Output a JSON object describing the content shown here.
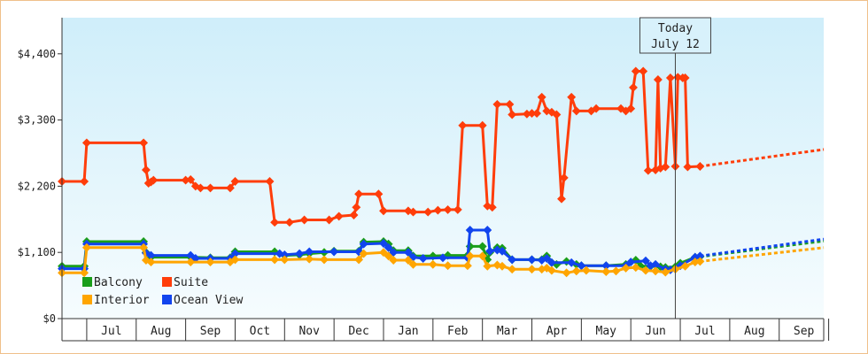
{
  "chart_data": {
    "type": "line",
    "title": "",
    "xlabel": "",
    "ylabel": "",
    "ylim": [
      0,
      5000
    ],
    "y_ticks": [
      {
        "value": 0,
        "label": "$0"
      },
      {
        "value": 1100,
        "label": "$1,100"
      },
      {
        "value": 2200,
        "label": "$2,200"
      },
      {
        "value": 3300,
        "label": "$3,300"
      },
      {
        "value": 4400,
        "label": "$4,400"
      }
    ],
    "x_unit": "months since start of June",
    "xlim": [
      0,
      15.4
    ],
    "month_ticks": [
      {
        "label": "Jul",
        "x": 1
      },
      {
        "label": "Aug",
        "x": 2
      },
      {
        "label": "Sep",
        "x": 3
      },
      {
        "label": "Oct",
        "x": 4
      },
      {
        "label": "Nov",
        "x": 5
      },
      {
        "label": "Dec",
        "x": 6
      },
      {
        "label": "Jan",
        "x": 7
      },
      {
        "label": "Feb",
        "x": 8
      },
      {
        "label": "Mar",
        "x": 9
      },
      {
        "label": "Apr",
        "x": 10
      },
      {
        "label": "May",
        "x": 11
      },
      {
        "label": "Jun",
        "x": 12
      },
      {
        "label": "Jul",
        "x": 13
      },
      {
        "label": "Aug",
        "x": 14
      },
      {
        "label": "Sep",
        "x": 15
      }
    ],
    "today": {
      "line1": "Today",
      "line2": "July 12",
      "x": 12.4
    },
    "grid": false,
    "background_gradient": [
      "#cfeefa",
      "#f6fcfe"
    ],
    "legend": {
      "placement": "bottom-left",
      "entries": [
        {
          "name": "Balcony",
          "color": "#1a9e1a"
        },
        {
          "name": "Suite",
          "color": "#ff3d0a"
        },
        {
          "name": "Interior",
          "color": "#ffa500"
        },
        {
          "name": "Ocean View",
          "color": "#1144ee"
        }
      ]
    },
    "series": [
      {
        "name": "Suite",
        "color": "#ff3d0a",
        "points": [
          [
            0,
            2280
          ],
          [
            0.45,
            2280
          ],
          [
            0.5,
            2920
          ],
          [
            1.65,
            2920
          ],
          [
            1.7,
            2470
          ],
          [
            1.75,
            2250
          ],
          [
            1.8,
            2270
          ],
          [
            1.85,
            2300
          ],
          [
            2.5,
            2300
          ],
          [
            2.6,
            2310
          ],
          [
            2.7,
            2200
          ],
          [
            2.8,
            2170
          ],
          [
            3.0,
            2170
          ],
          [
            3.4,
            2170
          ],
          [
            3.5,
            2280
          ],
          [
            4.2,
            2280
          ],
          [
            4.3,
            1600
          ],
          [
            4.6,
            1600
          ],
          [
            4.9,
            1640
          ],
          [
            5.4,
            1640
          ],
          [
            5.6,
            1700
          ],
          [
            5.9,
            1720
          ],
          [
            5.95,
            1850
          ],
          [
            6.0,
            2070
          ],
          [
            6.4,
            2070
          ],
          [
            6.5,
            1790
          ],
          [
            7.0,
            1790
          ],
          [
            7.1,
            1770
          ],
          [
            7.4,
            1770
          ],
          [
            7.6,
            1800
          ],
          [
            7.8,
            1810
          ],
          [
            8.0,
            1810
          ],
          [
            8.1,
            3210
          ],
          [
            8.5,
            3210
          ],
          [
            8.6,
            1870
          ],
          [
            8.7,
            1850
          ],
          [
            8.8,
            3560
          ],
          [
            9.05,
            3560
          ],
          [
            9.1,
            3390
          ],
          [
            9.4,
            3400
          ],
          [
            9.5,
            3410
          ],
          [
            9.6,
            3410
          ],
          [
            9.7,
            3680
          ],
          [
            9.8,
            3450
          ],
          [
            9.9,
            3430
          ],
          [
            10.0,
            3390
          ],
          [
            10.1,
            1990
          ],
          [
            10.15,
            2340
          ],
          [
            10.3,
            3680
          ],
          [
            10.4,
            3450
          ],
          [
            10.7,
            3450
          ],
          [
            10.8,
            3490
          ],
          [
            11.3,
            3490
          ],
          [
            11.4,
            3450
          ],
          [
            11.5,
            3490
          ],
          [
            11.55,
            3840
          ],
          [
            11.6,
            4110
          ],
          [
            11.75,
            4110
          ],
          [
            11.85,
            2460
          ],
          [
            12.0,
            2470
          ],
          [
            12.05,
            3970
          ],
          [
            12.1,
            2500
          ],
          [
            12.2,
            2520
          ],
          [
            12.3,
            4000
          ],
          [
            12.4,
            2530
          ],
          [
            12.45,
            4010
          ],
          [
            12.55,
            4000
          ],
          [
            12.6,
            4000
          ],
          [
            12.65,
            2520
          ],
          [
            12.9,
            2530
          ]
        ],
        "projection": [
          [
            12.9,
            2530
          ],
          [
            15.4,
            2810
          ]
        ]
      },
      {
        "name": "Balcony",
        "color": "#1a9e1a",
        "points": [
          [
            0,
            870
          ],
          [
            0.45,
            870
          ],
          [
            0.5,
            1280
          ],
          [
            1.65,
            1280
          ],
          [
            1.7,
            1100
          ],
          [
            1.8,
            1020
          ],
          [
            2.6,
            1020
          ],
          [
            3.0,
            1010
          ],
          [
            3.4,
            1010
          ],
          [
            3.5,
            1110
          ],
          [
            4.3,
            1110
          ],
          [
            4.5,
            1050
          ],
          [
            4.8,
            1060
          ],
          [
            5.0,
            1080
          ],
          [
            5.3,
            1100
          ],
          [
            5.5,
            1120
          ],
          [
            6.0,
            1120
          ],
          [
            6.1,
            1270
          ],
          [
            6.5,
            1280
          ],
          [
            6.6,
            1240
          ],
          [
            6.7,
            1130
          ],
          [
            7.0,
            1130
          ],
          [
            7.1,
            1040
          ],
          [
            7.5,
            1040
          ],
          [
            7.8,
            1050
          ],
          [
            8.2,
            1050
          ],
          [
            8.25,
            1200
          ],
          [
            8.5,
            1200
          ],
          [
            8.6,
            980
          ],
          [
            8.65,
            1100
          ],
          [
            8.8,
            1180
          ],
          [
            8.9,
            1170
          ],
          [
            9.1,
            980
          ],
          [
            9.5,
            980
          ],
          [
            9.7,
            980
          ],
          [
            9.8,
            1040
          ],
          [
            9.9,
            930
          ],
          [
            10.0,
            900
          ],
          [
            10.2,
            950
          ],
          [
            10.4,
            900
          ],
          [
            10.5,
            880
          ],
          [
            11.0,
            880
          ],
          [
            11.4,
            900
          ],
          [
            11.6,
            970
          ],
          [
            11.7,
            870
          ],
          [
            11.9,
            870
          ],
          [
            12.1,
            860
          ],
          [
            12.2,
            850
          ],
          [
            12.4,
            860
          ],
          [
            12.5,
            920
          ],
          [
            12.8,
            1020
          ],
          [
            12.9,
            1030
          ]
        ],
        "projection": [
          [
            12.9,
            1030
          ],
          [
            15.4,
            1290
          ]
        ]
      },
      {
        "name": "Ocean View",
        "color": "#1144ee",
        "points": [
          [
            0,
            830
          ],
          [
            0.45,
            830
          ],
          [
            0.5,
            1240
          ],
          [
            1.65,
            1240
          ],
          [
            1.7,
            1090
          ],
          [
            1.8,
            1050
          ],
          [
            2.6,
            1050
          ],
          [
            2.7,
            1000
          ],
          [
            3.0,
            1000
          ],
          [
            3.4,
            1000
          ],
          [
            3.5,
            1080
          ],
          [
            4.4,
            1080
          ],
          [
            4.5,
            1060
          ],
          [
            4.8,
            1080
          ],
          [
            5.0,
            1110
          ],
          [
            5.5,
            1110
          ],
          [
            6.0,
            1110
          ],
          [
            6.1,
            1240
          ],
          [
            6.5,
            1250
          ],
          [
            6.6,
            1180
          ],
          [
            6.7,
            1100
          ],
          [
            7.0,
            1100
          ],
          [
            7.1,
            1020
          ],
          [
            7.3,
            1000
          ],
          [
            7.7,
            1010
          ],
          [
            8.2,
            1010
          ],
          [
            8.25,
            1470
          ],
          [
            8.6,
            1470
          ],
          [
            8.65,
            1120
          ],
          [
            8.8,
            1140
          ],
          [
            8.9,
            1120
          ],
          [
            9.1,
            980
          ],
          [
            9.5,
            980
          ],
          [
            9.7,
            970
          ],
          [
            9.8,
            1000
          ],
          [
            9.9,
            930
          ],
          [
            10.3,
            930
          ],
          [
            10.5,
            880
          ],
          [
            11.0,
            880
          ],
          [
            11.4,
            880
          ],
          [
            11.5,
            940
          ],
          [
            11.8,
            960
          ],
          [
            11.9,
            880
          ],
          [
            12.0,
            900
          ],
          [
            12.2,
            820
          ],
          [
            12.3,
            810
          ],
          [
            12.5,
            880
          ],
          [
            12.8,
            1020
          ],
          [
            12.9,
            1040
          ]
        ],
        "projection": [
          [
            12.9,
            1040
          ],
          [
            15.4,
            1320
          ]
        ]
      },
      {
        "name": "Interior",
        "color": "#ffa500",
        "points": [
          [
            0,
            760
          ],
          [
            0.45,
            760
          ],
          [
            0.5,
            1180
          ],
          [
            1.65,
            1180
          ],
          [
            1.7,
            970
          ],
          [
            1.8,
            940
          ],
          [
            2.6,
            940
          ],
          [
            3.0,
            940
          ],
          [
            3.4,
            940
          ],
          [
            3.5,
            980
          ],
          [
            4.3,
            980
          ],
          [
            4.5,
            980
          ],
          [
            5.0,
            990
          ],
          [
            5.3,
            980
          ],
          [
            6.0,
            980
          ],
          [
            6.1,
            1080
          ],
          [
            6.5,
            1100
          ],
          [
            6.6,
            1040
          ],
          [
            6.7,
            970
          ],
          [
            7.0,
            970
          ],
          [
            7.1,
            900
          ],
          [
            7.5,
            900
          ],
          [
            7.8,
            880
          ],
          [
            8.2,
            880
          ],
          [
            8.25,
            1040
          ],
          [
            8.5,
            1040
          ],
          [
            8.6,
            870
          ],
          [
            8.8,
            890
          ],
          [
            8.9,
            870
          ],
          [
            9.1,
            820
          ],
          [
            9.5,
            820
          ],
          [
            9.7,
            820
          ],
          [
            9.8,
            840
          ],
          [
            9.9,
            800
          ],
          [
            10.2,
            760
          ],
          [
            10.4,
            790
          ],
          [
            10.6,
            800
          ],
          [
            11.0,
            780
          ],
          [
            11.2,
            790
          ],
          [
            11.4,
            840
          ],
          [
            11.6,
            850
          ],
          [
            11.8,
            800
          ],
          [
            12.0,
            790
          ],
          [
            12.2,
            770
          ],
          [
            12.4,
            820
          ],
          [
            12.6,
            870
          ],
          [
            12.8,
            940
          ],
          [
            12.9,
            950
          ]
        ],
        "projection": [
          [
            12.9,
            950
          ],
          [
            15.4,
            1180
          ]
        ]
      }
    ]
  }
}
